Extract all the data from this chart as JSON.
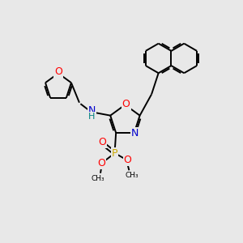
{
  "bg_color": "#e8e8e8",
  "fig_size": [
    3.0,
    3.0
  ],
  "dpi": 100,
  "atom_colors": {
    "C": "#000000",
    "N": "#0000cd",
    "O": "#ff0000",
    "P": "#ccaa00",
    "H": "#008080"
  }
}
